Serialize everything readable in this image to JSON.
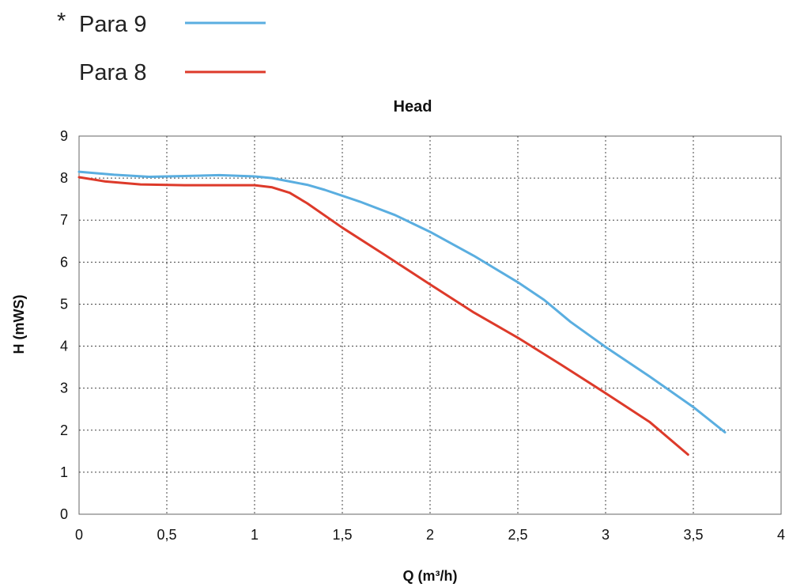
{
  "legend": [
    {
      "marker": "*",
      "label": "Para 9",
      "color": "#5aaee0"
    },
    {
      "marker": "",
      "label": "Para 8",
      "color": "#dd3a2a"
    }
  ],
  "chart_data": {
    "type": "line",
    "title": "Head",
    "xlabel": "Q (m³/h)",
    "ylabel": "H (mWS)",
    "xlim": [
      0,
      4
    ],
    "ylim": [
      0,
      9
    ],
    "x_ticks": [
      "0",
      "0,5",
      "1",
      "1,5",
      "2",
      "2,5",
      "3",
      "3,5",
      "4"
    ],
    "y_ticks": [
      "0",
      "1",
      "2",
      "3",
      "4",
      "5",
      "6",
      "7",
      "8",
      "9"
    ],
    "grid": true,
    "legend_position": "top-left",
    "series": [
      {
        "name": "Para 9",
        "color": "#5aaee0",
        "x": [
          0,
          0.2,
          0.4,
          0.6,
          0.8,
          1.0,
          1.1,
          1.2,
          1.3,
          1.4,
          1.5,
          1.6,
          1.8,
          2.0,
          2.25,
          2.5,
          2.65,
          2.8,
          3.0,
          3.25,
          3.5,
          3.68
        ],
        "y": [
          8.15,
          8.08,
          8.03,
          8.05,
          8.07,
          8.04,
          8.0,
          7.92,
          7.84,
          7.72,
          7.58,
          7.44,
          7.12,
          6.72,
          6.15,
          5.52,
          5.1,
          4.58,
          3.98,
          3.28,
          2.55,
          1.95
        ]
      },
      {
        "name": "Para 8",
        "color": "#dd3a2a",
        "x": [
          0,
          0.15,
          0.35,
          0.6,
          0.8,
          1.0,
          1.1,
          1.2,
          1.3,
          1.5,
          1.75,
          2.0,
          2.25,
          2.5,
          2.75,
          3.0,
          3.25,
          3.47
        ],
        "y": [
          8.02,
          7.92,
          7.85,
          7.83,
          7.83,
          7.83,
          7.78,
          7.65,
          7.4,
          6.82,
          6.15,
          5.47,
          4.8,
          4.2,
          3.55,
          2.88,
          2.2,
          1.42
        ]
      }
    ]
  }
}
